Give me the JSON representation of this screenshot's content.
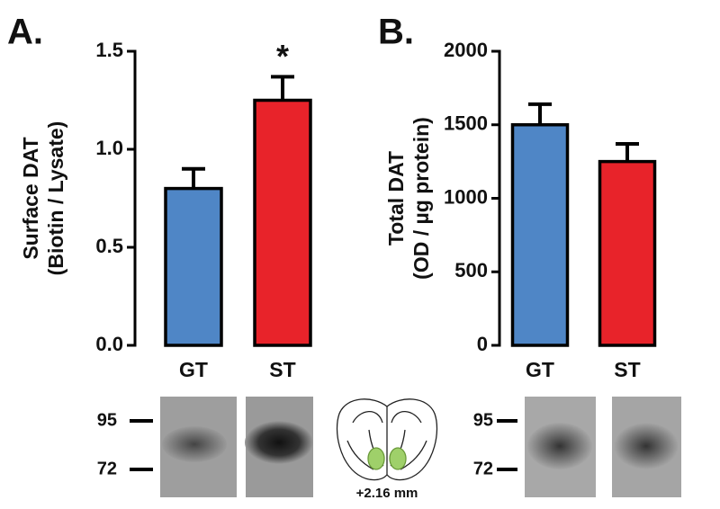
{
  "chart_data": [
    {
      "type": "bar",
      "panel": "A.",
      "ylabel": [
        "Surface  DAT",
        "(Biotin / Lysate)"
      ],
      "categories": [
        "GT",
        "ST"
      ],
      "values": [
        0.8,
        1.25
      ],
      "errors": [
        0.1,
        0.12
      ],
      "colors": [
        "#4f86c6",
        "#e8232a"
      ],
      "ylim": [
        0,
        1.5
      ],
      "yticks": [
        {
          "value": 0,
          "label": "0.0"
        },
        0.5,
        {
          "value": 1,
          "label": "1.0"
        },
        1.5
      ],
      "annotations": [
        {
          "text": "*",
          "x": "ST"
        }
      ]
    },
    {
      "type": "bar",
      "panel": "B.",
      "ylabel": [
        "Total  DAT",
        "(OD / µg protein)"
      ],
      "categories": [
        "GT",
        "ST"
      ],
      "values": [
        1500,
        1250
      ],
      "errors": [
        140,
        120
      ],
      "colors": [
        "#4f86c6",
        "#e8232a"
      ],
      "ylim": [
        0,
        2000
      ],
      "yticks": [
        0,
        500,
        1000,
        1500,
        2000
      ]
    }
  ],
  "blots": [
    {
      "markers": [
        "95",
        "72"
      ]
    },
    {
      "markers": [
        "95",
        "72"
      ]
    }
  ],
  "brain_label": "+2.16 mm"
}
